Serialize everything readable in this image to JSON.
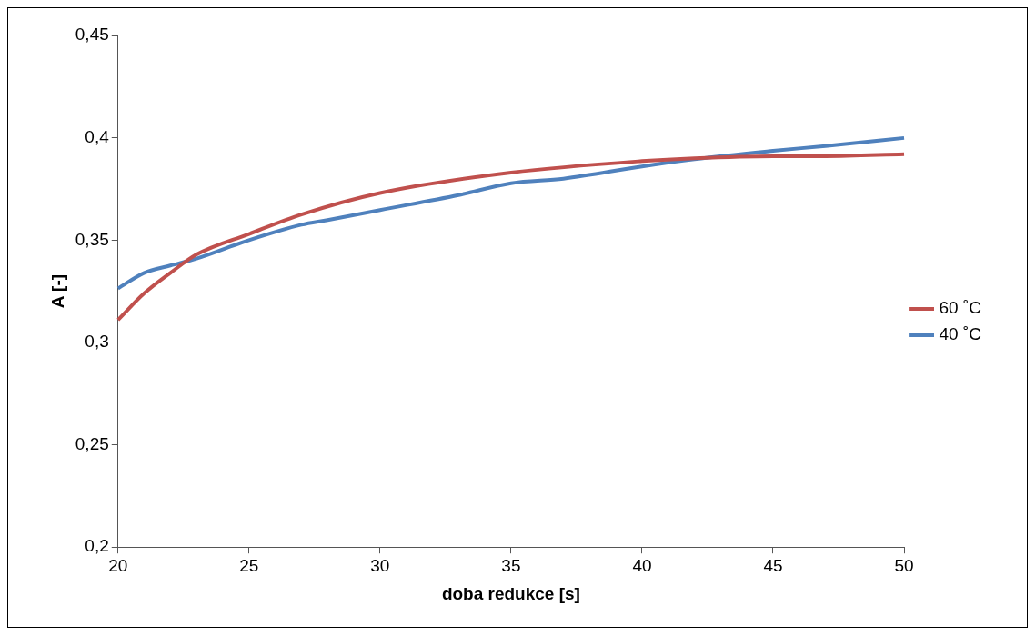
{
  "chart_data": {
    "type": "line",
    "xlabel": "doba redukce [s]",
    "ylabel": "A [-]",
    "xlim": [
      20,
      50
    ],
    "xticks": [
      20,
      25,
      30,
      35,
      40,
      45,
      50
    ],
    "ylim": [
      0.2,
      0.45
    ],
    "yticks": [
      {
        "value": 0.2,
        "label": "0,2"
      },
      {
        "value": 0.25,
        "label": "0,25"
      },
      {
        "value": 0.3,
        "label": "0,3"
      },
      {
        "value": 0.35,
        "label": "0,35"
      },
      {
        "value": 0.4,
        "label": "0,4"
      },
      {
        "value": 0.45,
        "label": "0,45"
      }
    ],
    "grid": false,
    "legend": "right",
    "marker": "none",
    "line_style": "solid",
    "series": [
      {
        "name": "60 ˚C",
        "color": "#c0504d",
        "x": [
          20,
          21,
          22,
          23,
          25,
          27,
          30,
          35,
          40,
          42,
          45,
          47,
          50
        ],
        "values": [
          0.311,
          0.324,
          0.334,
          0.343,
          0.353,
          0.3625,
          0.373,
          0.383,
          0.3886,
          0.39,
          0.391,
          0.391,
          0.392
        ]
      },
      {
        "name": "40 ˚C",
        "color": "#4f81bd",
        "x": [
          20,
          21,
          22,
          23,
          25,
          27,
          28,
          30,
          33,
          35,
          37,
          40,
          42,
          45,
          47,
          50
        ],
        "values": [
          0.3264,
          0.334,
          0.3376,
          0.341,
          0.35,
          0.3575,
          0.3598,
          0.3647,
          0.372,
          0.3778,
          0.38,
          0.386,
          0.3895,
          0.3936,
          0.396,
          0.3999
        ]
      }
    ]
  }
}
